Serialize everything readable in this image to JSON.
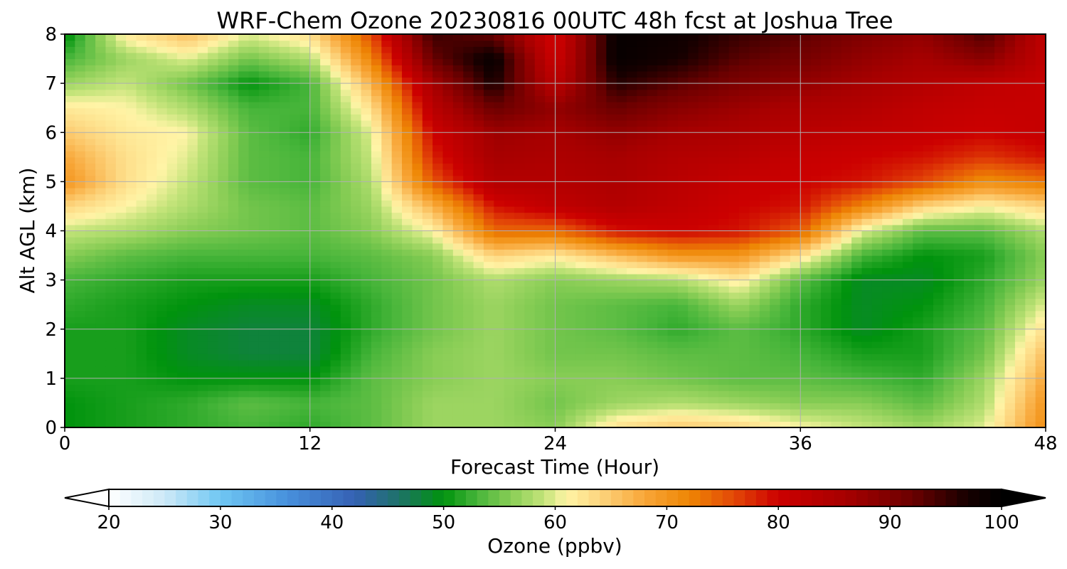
{
  "chart_data": {
    "type": "heatmap",
    "title": "WRF-Chem Ozone  20230816 00UTC 48h fcst at Joshua Tree",
    "xlabel": "Forecast Time (Hour)",
    "ylabel": "Alt AGL (km)",
    "xlim": [
      0,
      48
    ],
    "ylim": [
      0,
      8
    ],
    "xticks": [
      "0",
      "12",
      "24",
      "36",
      "48"
    ],
    "yticks": [
      "0",
      "1",
      "2",
      "3",
      "4",
      "5",
      "6",
      "7",
      "8"
    ],
    "grid": true,
    "x": [
      0,
      3,
      6,
      9,
      12,
      15,
      18,
      21,
      24,
      27,
      30,
      33,
      36,
      39,
      42,
      45,
      48
    ],
    "y": [
      0,
      0.5,
      1,
      1.5,
      2,
      2.5,
      3,
      3.5,
      4,
      4.5,
      5,
      5.5,
      6,
      6.5,
      7,
      7.5,
      8
    ],
    "z": [
      [
        50,
        51,
        52,
        53,
        52,
        54,
        57,
        57,
        56,
        63,
        65,
        64,
        61,
        59,
        57,
        60,
        71
      ],
      [
        50,
        51,
        52,
        54,
        53,
        54,
        57,
        57,
        55,
        57,
        58,
        57,
        56,
        56,
        54,
        58,
        70
      ],
      [
        51,
        51,
        50,
        50,
        50,
        54,
        56,
        57,
        56,
        56,
        55,
        54,
        54,
        53,
        52,
        57,
        68
      ],
      [
        51,
        51,
        49,
        48,
        48,
        53,
        56,
        57,
        55,
        55,
        54,
        54,
        53,
        51,
        51,
        55,
        66
      ],
      [
        51,
        51,
        49,
        48,
        48,
        52,
        55,
        57,
        55,
        54,
        52,
        54,
        52,
        49,
        51,
        54,
        63
      ],
      [
        52,
        51,
        50,
        49,
        49,
        52,
        55,
        57,
        55,
        54,
        53,
        57,
        52,
        49,
        50,
        53,
        60
      ],
      [
        53,
        52,
        51,
        51,
        51,
        53,
        55,
        58,
        56,
        57,
        58,
        62,
        54,
        49,
        49,
        52,
        57
      ],
      [
        56,
        54,
        53,
        53,
        53,
        54,
        56,
        64,
        62,
        66,
        70,
        70,
        63,
        53,
        50,
        51,
        56
      ],
      [
        59,
        58,
        56,
        55,
        54,
        56,
        61,
        74,
        74,
        79,
        80,
        79,
        75,
        60,
        54,
        54,
        58
      ],
      [
        64,
        61,
        58,
        55,
        54,
        57,
        67,
        79,
        82,
        84,
        82,
        80,
        79,
        72,
        64,
        61,
        64
      ],
      [
        70,
        63,
        59,
        54,
        53,
        58,
        75,
        84,
        84,
        85,
        83,
        81,
        80,
        79,
        76,
        71,
        73
      ],
      [
        68,
        63,
        60,
        54,
        53,
        59,
        78,
        86,
        85,
        86,
        84,
        83,
        81,
        80,
        79,
        77,
        79
      ],
      [
        65,
        62,
        61,
        54,
        52,
        60,
        80,
        87,
        86,
        88,
        86,
        85,
        83,
        82,
        81,
        80,
        81
      ],
      [
        62,
        61,
        58,
        53,
        53,
        63,
        83,
        92,
        88,
        92,
        89,
        87,
        85,
        84,
        82,
        81,
        81
      ],
      [
        57,
        59,
        55,
        50,
        53,
        67,
        86,
        97,
        83,
        96,
        93,
        90,
        88,
        86,
        84,
        82,
        81
      ],
      [
        53,
        57,
        60,
        55,
        58,
        72,
        92,
        99,
        80,
        99,
        97,
        93,
        91,
        88,
        86,
        89,
        82
      ],
      [
        49,
        62,
        66,
        60,
        63,
        76,
        95,
        92,
        79,
        99,
        98,
        95,
        93,
        90,
        88,
        94,
        82
      ]
    ],
    "colorbar": {
      "label": "Ozone  (ppbv)",
      "min": 20,
      "max": 100,
      "ticks": [
        "20",
        "30",
        "40",
        "50",
        "60",
        "70",
        "80",
        "90",
        "100"
      ],
      "extend": "both",
      "stops": [
        [
          20,
          "#ffffff"
        ],
        [
          25,
          "#cde9f7"
        ],
        [
          30,
          "#6fc6f3"
        ],
        [
          36,
          "#4790dc"
        ],
        [
          42,
          "#3561b4"
        ],
        [
          46,
          "#1e7268"
        ],
        [
          50,
          "#00930d"
        ],
        [
          53,
          "#47b53a"
        ],
        [
          56,
          "#88cd55"
        ],
        [
          59,
          "#c4e47a"
        ],
        [
          61,
          "#fff4a6"
        ],
        [
          64,
          "#fdd57e"
        ],
        [
          68,
          "#f8a638"
        ],
        [
          72,
          "#ee8604"
        ],
        [
          76,
          "#e34807"
        ],
        [
          80,
          "#cc0000"
        ],
        [
          86,
          "#a70000"
        ],
        [
          92,
          "#6b0000"
        ],
        [
          97,
          "#150000"
        ],
        [
          100,
          "#000000"
        ]
      ]
    }
  }
}
